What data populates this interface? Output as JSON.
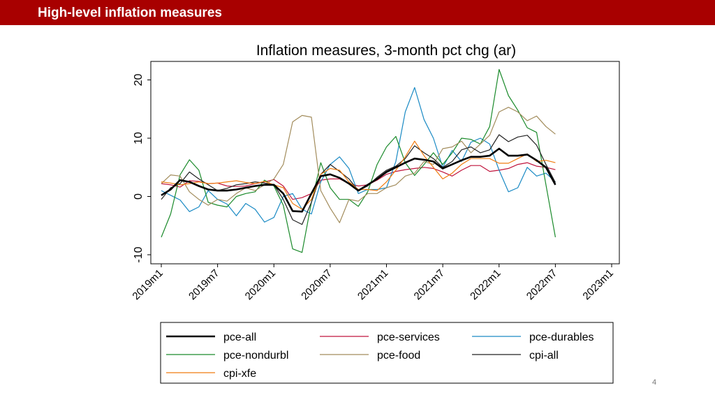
{
  "header": {
    "title": "High-level inflation measures"
  },
  "page_number": "4",
  "chart_data": {
    "type": "line",
    "title": "Inflation measures, 3-month pct chg (ar)",
    "xlabel": "",
    "ylabel": "",
    "x_index_note": "x = months since 2019m1",
    "xlim": [
      0,
      48
    ],
    "ylim": [
      -11.5,
      23
    ],
    "yticks": [
      -10,
      0,
      10,
      20
    ],
    "ytick_labels": [
      "-10",
      "0",
      "10",
      "20"
    ],
    "xticks": [
      0,
      6,
      12,
      18,
      24,
      30,
      36,
      42,
      48
    ],
    "xtick_labels": [
      "2019m1",
      "2019m7",
      "2020m1",
      "2020m7",
      "2021m1",
      "2021m7",
      "2022m1",
      "2022m7",
      "2023m1"
    ],
    "grid": false,
    "legend_position": "bottom",
    "series": [
      {
        "name": "pce-all",
        "color": "#000000",
        "width": 2.6,
        "values": [
          0.2,
          1.2,
          2.8,
          2.5,
          1.8,
          1.2,
          1.0,
          1.0,
          1.2,
          1.5,
          1.8,
          2.0,
          2.0,
          0.5,
          -2.5,
          -2.6,
          0.5,
          3.5,
          3.8,
          3.2,
          2.2,
          1.0,
          2.0,
          3.0,
          4.2,
          5.0,
          5.8,
          6.5,
          6.3,
          6.0,
          4.8,
          5.5,
          6.2,
          6.8,
          6.8,
          7.0,
          8.2,
          7.0,
          7.0,
          7.2,
          6.2,
          5.0,
          2.0
        ]
      },
      {
        "name": "pce-services",
        "color": "#c0143c",
        "width": 1.2,
        "values": [
          2.2,
          2.0,
          1.6,
          2.7,
          2.6,
          2.2,
          2.3,
          1.8,
          1.7,
          1.8,
          2.2,
          2.5,
          2.9,
          1.8,
          -0.5,
          -0.2,
          0.5,
          2.8,
          3.0,
          3.0,
          2.2,
          1.8,
          2.0,
          2.8,
          3.8,
          4.3,
          4.6,
          4.8,
          5.0,
          4.8,
          4.2,
          3.5,
          4.5,
          5.3,
          5.3,
          4.3,
          4.5,
          4.8,
          5.5,
          5.8,
          5.2,
          5.0,
          4.6
        ]
      },
      {
        "name": "pce-durables",
        "color": "#1a8ac4",
        "width": 1.2,
        "values": [
          1.0,
          0.2,
          -0.6,
          -2.6,
          -1.8,
          1.0,
          -0.5,
          -1.3,
          -3.3,
          -1.2,
          -2.2,
          -4.4,
          -3.6,
          0.0,
          0.5,
          -2.2,
          -3.0,
          2.5,
          5.5,
          6.8,
          4.8,
          0.5,
          1.2,
          1.2,
          1.5,
          6.0,
          14.5,
          18.7,
          13.2,
          10.0,
          5.0,
          7.9,
          6.0,
          9.3,
          10.0,
          9.0,
          4.5,
          0.8,
          1.5,
          5.0,
          3.5,
          4.0,
          2.5
        ]
      },
      {
        "name": "pce-nondurbl",
        "color": "#1a8a2a",
        "width": 1.2,
        "values": [
          -7.0,
          -3.0,
          3.7,
          6.3,
          4.5,
          -1.0,
          -1.5,
          -1.8,
          0.0,
          0.5,
          0.8,
          2.8,
          1.8,
          -1.5,
          -9.0,
          -9.6,
          -1.0,
          5.8,
          1.5,
          -0.5,
          -0.5,
          -1.7,
          0.8,
          5.5,
          8.5,
          10.3,
          5.8,
          3.6,
          5.5,
          7.5,
          5.5,
          7.5,
          10.0,
          9.8,
          9.0,
          12.0,
          21.8,
          17.3,
          14.8,
          11.8,
          11.0,
          2.0,
          -7.0
        ]
      },
      {
        "name": "pce-food",
        "color": "#a28c5c",
        "width": 1.2,
        "values": [
          2.2,
          3.7,
          3.5,
          0.8,
          -0.5,
          -1.5,
          -0.5,
          -0.8,
          0.5,
          1.5,
          1.0,
          2.0,
          3.0,
          5.5,
          12.8,
          13.9,
          13.6,
          1.0,
          -2.0,
          -4.5,
          -0.5,
          -0.8,
          0.5,
          0.5,
          1.5,
          2.0,
          3.5,
          4.0,
          6.0,
          5.5,
          8.2,
          8.5,
          9.5,
          7.5,
          9.0,
          10.5,
          14.5,
          15.3,
          14.5,
          13.0,
          13.8,
          12.0,
          10.7
        ]
      },
      {
        "name": "cpi-all",
        "color": "#222222",
        "width": 1.2,
        "values": [
          -0.5,
          1.5,
          2.2,
          4.2,
          3.0,
          2.0,
          1.0,
          1.4,
          2.0,
          2.2,
          2.5,
          2.3,
          2.0,
          -0.5,
          -4.0,
          -4.8,
          -1.0,
          3.8,
          5.5,
          4.3,
          3.0,
          1.0,
          1.8,
          3.3,
          4.5,
          5.2,
          6.5,
          8.7,
          7.5,
          6.5,
          5.0,
          6.0,
          8.0,
          8.5,
          7.5,
          8.0,
          10.6,
          9.4,
          10.2,
          10.5,
          8.8,
          5.5,
          2.4
        ]
      },
      {
        "name": "cpi-xfe",
        "color": "#f07c10",
        "width": 1.2,
        "values": [
          2.5,
          2.3,
          2.0,
          2.2,
          2.5,
          2.2,
          2.3,
          2.5,
          2.7,
          2.4,
          2.2,
          2.6,
          2.0,
          1.5,
          -1.2,
          -2.2,
          -0.5,
          3.8,
          4.8,
          4.5,
          2.5,
          1.2,
          1.2,
          1.0,
          2.5,
          4.5,
          6.8,
          9.5,
          7.0,
          5.0,
          3.0,
          4.0,
          5.5,
          6.5,
          6.5,
          6.5,
          5.7,
          5.7,
          6.5,
          7.3,
          6.0,
          6.2,
          5.8
        ]
      }
    ]
  }
}
